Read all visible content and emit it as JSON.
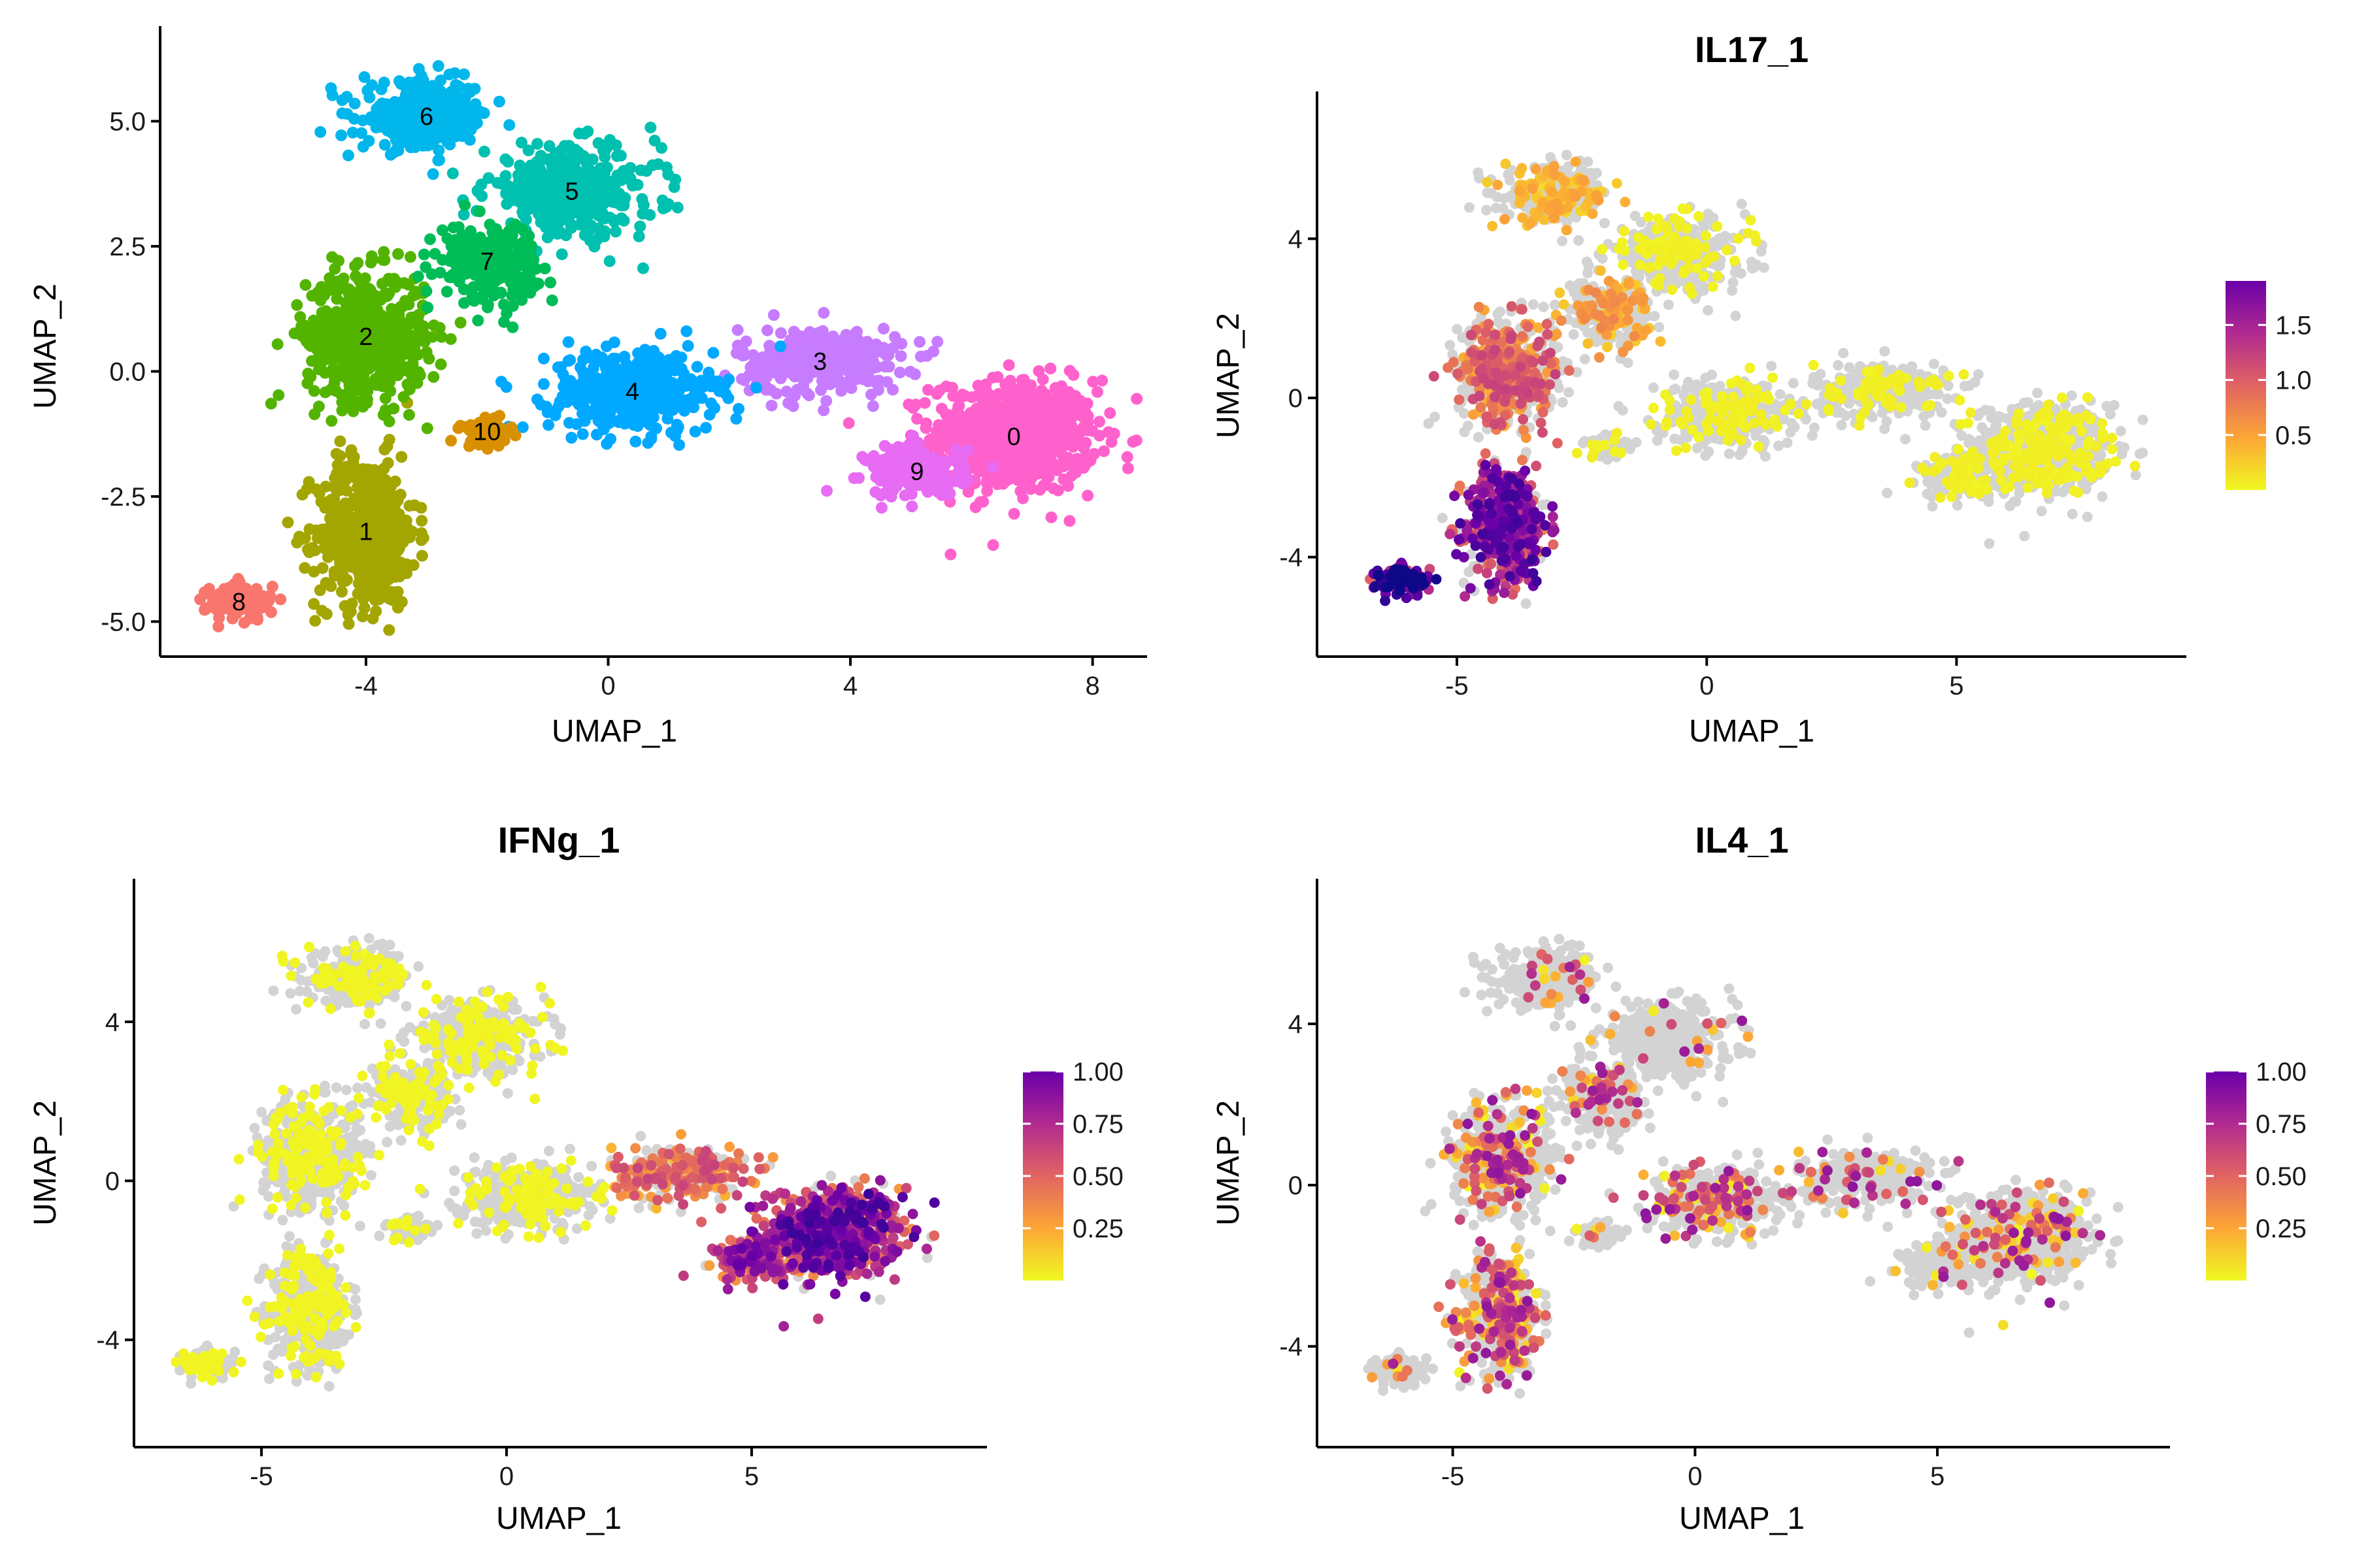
{
  "chart_data": [
    {
      "type": "scatter",
      "id": "clusters",
      "title": "",
      "xlabel": "UMAP_1",
      "ylabel": "UMAP_2",
      "xlim": [
        -7.4,
        8.9
      ],
      "ylim": [
        -5.7,
        6.9
      ],
      "xticks": [
        -4,
        0,
        4,
        8
      ],
      "xtick_labels": [
        "-4",
        "0",
        "4",
        "8"
      ],
      "yticks": [
        -5,
        -2.5,
        0,
        2.5,
        5
      ],
      "ytick_labels": [
        "-5.0",
        "-2.5",
        "0.0",
        "2.5",
        "5.0"
      ],
      "legend": "none",
      "clusters": [
        {
          "label": "0",
          "color": "#FF61CC",
          "x": 6.7,
          "y": -1.3
        },
        {
          "label": "1",
          "color": "#A3A500",
          "x": -4.0,
          "y": -3.2
        },
        {
          "label": "2",
          "color": "#53B400",
          "x": -4.0,
          "y": 0.7
        },
        {
          "label": "3",
          "color": "#C77CFF",
          "x": 3.5,
          "y": 0.2
        },
        {
          "label": "4",
          "color": "#00A9FF",
          "x": 0.4,
          "y": -0.4
        },
        {
          "label": "5",
          "color": "#00C0AF",
          "x": -0.6,
          "y": 3.6
        },
        {
          "label": "6",
          "color": "#00B6EB",
          "x": -3.0,
          "y": 5.1
        },
        {
          "label": "7",
          "color": "#00BC56",
          "x": -2.0,
          "y": 2.2
        },
        {
          "label": "8",
          "color": "#F8766D",
          "x": -6.1,
          "y": -4.6
        },
        {
          "label": "9",
          "color": "#E76BF3",
          "x": 5.1,
          "y": -2.0
        },
        {
          "label": "10",
          "color": "#D89000",
          "x": -2.0,
          "y": -1.2
        }
      ]
    },
    {
      "type": "scatter",
      "id": "il17",
      "title": "IL17_1",
      "xlabel": "UMAP_1",
      "ylabel": "UMAP_2",
      "xlim": [
        -7.8,
        9.6
      ],
      "ylim": [
        -6.5,
        7.7
      ],
      "xticks": [
        -5,
        0,
        5
      ],
      "xtick_labels": [
        "-5",
        "0",
        "5"
      ],
      "yticks": [
        -4,
        0,
        4
      ],
      "ytick_labels": [
        "-4",
        "0",
        "4"
      ],
      "colorbar": {
        "min": 0,
        "max": 1.9,
        "ticks": [
          0.5,
          1.0,
          1.5
        ],
        "tick_labels": [
          "0.5",
          "1.0",
          "1.5"
        ]
      }
    },
    {
      "type": "scatter",
      "id": "ifng",
      "title": "IFNg_1",
      "xlabel": "UMAP_1",
      "ylabel": "UMAP_2",
      "xlim": [
        -7.6,
        9.8
      ],
      "ylim": [
        -6.7,
        7.6
      ],
      "xticks": [
        -5,
        0,
        5
      ],
      "xtick_labels": [
        "-5",
        "0",
        "5"
      ],
      "yticks": [
        -4,
        0,
        4
      ],
      "ytick_labels": [
        "-4",
        "0",
        "4"
      ],
      "colorbar": {
        "min": 0,
        "max": 1.0,
        "ticks": [
          0.25,
          0.5,
          0.75,
          1.0
        ],
        "tick_labels": [
          "0.25",
          "0.50",
          "0.75",
          "1.00"
        ]
      }
    },
    {
      "type": "scatter",
      "id": "il4",
      "title": "IL4_1",
      "xlabel": "UMAP_1",
      "ylabel": "UMAP_2",
      "xlim": [
        -7.8,
        9.8
      ],
      "ylim": [
        -6.5,
        7.6
      ],
      "xticks": [
        -5,
        0,
        5
      ],
      "xtick_labels": [
        "-5",
        "0",
        "5"
      ],
      "yticks": [
        -4,
        0,
        4
      ],
      "ytick_labels": [
        "-4",
        "0",
        "4"
      ],
      "colorbar": {
        "min": 0,
        "max": 1.0,
        "ticks": [
          0.25,
          0.5,
          0.75,
          1.0
        ],
        "tick_labels": [
          "0.25",
          "0.50",
          "0.75",
          "1.00"
        ]
      }
    }
  ],
  "colors": {
    "background_cell": "#D3D3D3",
    "plasma_low": "#F0F921",
    "plasma_mid": "#E16462",
    "plasma_high": "#0D0887"
  }
}
